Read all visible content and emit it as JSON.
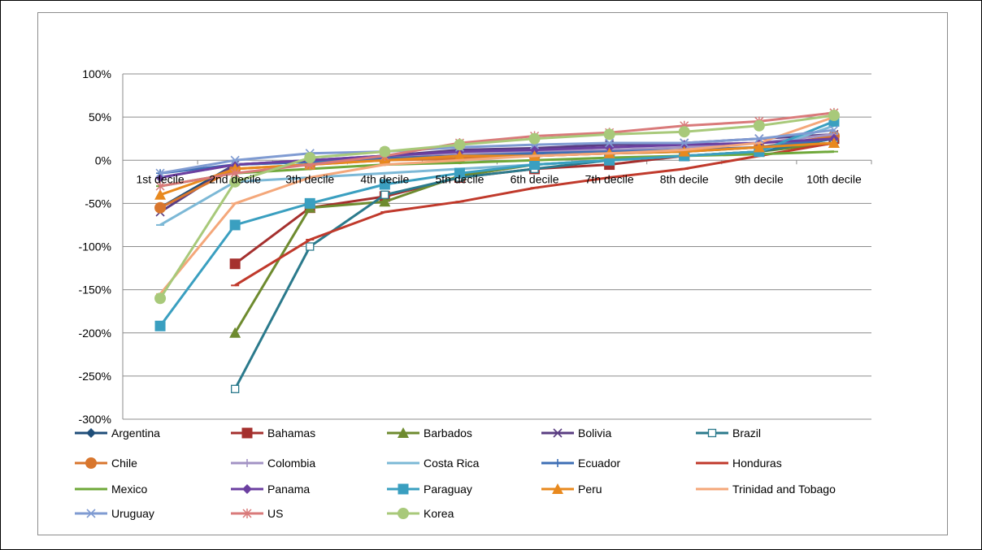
{
  "chart_data": {
    "type": "line",
    "title": "",
    "xlabel": "",
    "ylabel": "",
    "categories": [
      "1st decile",
      "2nd decile",
      "3th decile",
      "4th decile",
      "5th decile",
      "6th decile",
      "7th decile",
      "8th decile",
      "9th decile",
      "10th decile"
    ],
    "y_ticks": [
      "100%",
      "50%",
      "0%",
      "-50%",
      "-100%",
      "-150%",
      "-200%",
      "-250%",
      "-300%"
    ],
    "ylim": [
      -300,
      100
    ],
    "y_unit": "%",
    "grid": "horizontal",
    "legend_position": "bottom",
    "series": [
      {
        "name": "Argentina",
        "color": "#1F4E79",
        "marker": "diamond",
        "values": [
          -55,
          -5,
          -2,
          3,
          5,
          5,
          8,
          10,
          15,
          20
        ]
      },
      {
        "name": "Bahamas",
        "color": "#A5302E",
        "marker": "square",
        "values": [
          null,
          -120,
          -55,
          -42,
          -20,
          -10,
          -5,
          5,
          10,
          25
        ]
      },
      {
        "name": "Barbados",
        "color": "#6E8B2F",
        "marker": "triangle",
        "values": [
          null,
          -200,
          -55,
          -48,
          -18,
          -5,
          0,
          5,
          10,
          20
        ]
      },
      {
        "name": "Bolivia",
        "color": "#5A3D82",
        "marker": "x",
        "values": [
          -60,
          -5,
          0,
          5,
          12,
          14,
          18,
          20,
          25,
          30
        ]
      },
      {
        "name": "Brazil",
        "color": "#2B7A8C",
        "marker": "square-open",
        "values": [
          null,
          -265,
          -100,
          -40,
          -20,
          -10,
          0,
          5,
          10,
          25
        ]
      },
      {
        "name": "Chile",
        "color": "#D8762D",
        "marker": "circle",
        "values": [
          -55,
          -10,
          -5,
          0,
          2,
          5,
          8,
          12,
          15,
          28
        ]
      },
      {
        "name": "Colombia",
        "color": "#A393C4",
        "marker": "plus",
        "values": [
          -20,
          -5,
          0,
          5,
          8,
          10,
          12,
          15,
          20,
          30
        ]
      },
      {
        "name": "Costa Rica",
        "color": "#7CB8D6",
        "marker": "dash",
        "values": [
          -75,
          -25,
          -20,
          -15,
          -10,
          -5,
          0,
          5,
          10,
          40
        ]
      },
      {
        "name": "Ecuador",
        "color": "#3E6FB5",
        "marker": "plus",
        "values": [
          -15,
          -5,
          -2,
          2,
          5,
          8,
          10,
          12,
          15,
          25
        ]
      },
      {
        "name": "Honduras",
        "color": "#C0392B",
        "marker": "dash",
        "values": [
          null,
          -145,
          -92,
          -60,
          -48,
          -32,
          -20,
          -10,
          5,
          20
        ]
      },
      {
        "name": "Mexico",
        "color": "#6FA83A",
        "marker": "dash",
        "values": [
          -30,
          -15,
          -10,
          -5,
          -3,
          0,
          3,
          5,
          7,
          10
        ]
      },
      {
        "name": "Panama",
        "color": "#6B3FA0",
        "marker": "diamond",
        "values": [
          -20,
          -5,
          0,
          5,
          10,
          12,
          15,
          18,
          20,
          25
        ]
      },
      {
        "name": "Paraguay",
        "color": "#3A9FC0",
        "marker": "square",
        "values": [
          -192,
          -75,
          -50,
          -28,
          -15,
          -5,
          0,
          5,
          10,
          45
        ]
      },
      {
        "name": "Peru",
        "color": "#E8891E",
        "marker": "triangle",
        "values": [
          -40,
          -10,
          -5,
          0,
          5,
          5,
          8,
          10,
          15,
          20
        ]
      },
      {
        "name": "Trinidad and Tobago",
        "color": "#F4A77A",
        "marker": "dash",
        "values": [
          -155,
          -50,
          -20,
          -5,
          0,
          5,
          8,
          12,
          20,
          50
        ]
      },
      {
        "name": "Uruguay",
        "color": "#7F9BD2",
        "marker": "x",
        "values": [
          -15,
          0,
          8,
          10,
          15,
          18,
          20,
          20,
          25,
          35
        ]
      },
      {
        "name": "US",
        "color": "#D97A7A",
        "marker": "asterisk",
        "values": [
          -30,
          -15,
          -5,
          5,
          20,
          28,
          32,
          40,
          45,
          55
        ]
      },
      {
        "name": "Korea",
        "color": "#A8C97A",
        "marker": "circle",
        "values": [
          -160,
          -25,
          3,
          10,
          18,
          25,
          30,
          33,
          40,
          52
        ]
      }
    ]
  }
}
